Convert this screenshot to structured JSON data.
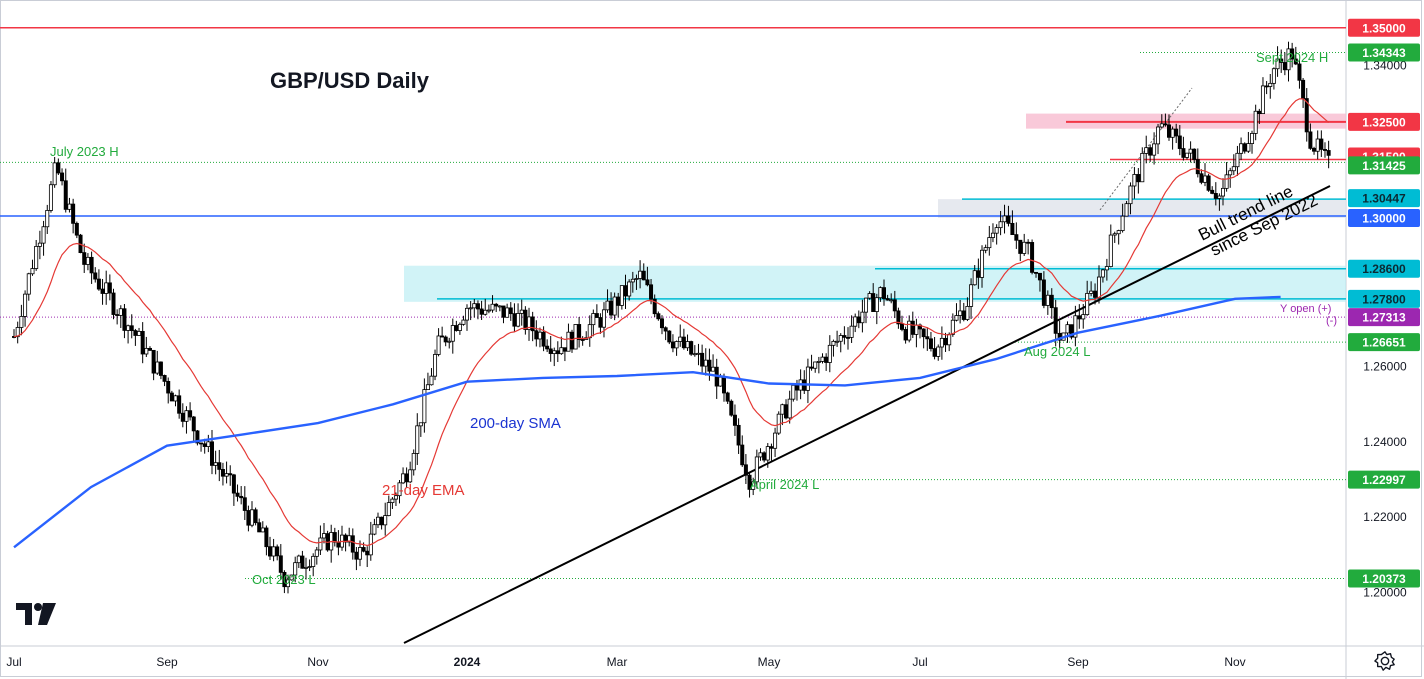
{
  "chart_data": {
    "type": "candlestick",
    "title": "GBP/USD Daily",
    "x_axis": {
      "labels": [
        "Jul",
        "Sep",
        "Nov",
        "2024",
        "Mar",
        "May",
        "Jul",
        "Sep",
        "Nov"
      ]
    },
    "y_axis": {
      "range": [
        1.185,
        1.36
      ],
      "ticks": [
        "1.34000",
        "1.26000",
        "1.24000",
        "1.22000",
        "1.20000"
      ]
    },
    "series": [
      {
        "name": "21-day EMA",
        "color": "#e53935"
      },
      {
        "name": "200-day SMA",
        "color": "#2962ff"
      }
    ],
    "levels": [
      {
        "value": "1.35000",
        "badge_color": "#f23645",
        "line": "solid"
      },
      {
        "value": "1.34343",
        "badge_color": "#22ab3d",
        "line": "dotted",
        "annotation": "Sept 2024 H"
      },
      {
        "value": "1.32500",
        "badge_color": "#f23645",
        "line": "solid"
      },
      {
        "value": "1.31500",
        "badge_color": "#f23645",
        "line": "solid"
      },
      {
        "value": "1.31425",
        "badge_color": "#22ab3d",
        "line": "dotted"
      },
      {
        "value": "1.30447",
        "badge_color": "#00bcd4",
        "line": "solid"
      },
      {
        "value": "1.30000",
        "badge_color": "#2962ff",
        "line": "solid"
      },
      {
        "value": "1.28600",
        "badge_color": "#00bcd4",
        "line": "solid"
      },
      {
        "value": "1.27800",
        "badge_color": "#00bcd4",
        "line": "solid"
      },
      {
        "value": "1.27313",
        "badge_color": "#9c27b0",
        "line": "dotted",
        "annotation": "Y open (+)\n(-)"
      },
      {
        "value": "1.26651",
        "badge_color": "#22ab3d",
        "line": "dotted",
        "annotation": "Aug 2024 L"
      },
      {
        "value": "1.22997",
        "badge_color": "#22ab3d",
        "line": "dotted",
        "annotation": "April 2024 L"
      },
      {
        "value": "1.20373",
        "badge_color": "#22ab3d",
        "line": "dotted",
        "annotation": "Oct 2023 L"
      }
    ],
    "annotations": {
      "july_2023_high": "July 2023 H",
      "sma_label": "200-day SMA",
      "ema_label": "21-day EMA",
      "trendline_label_1": "Bull trend line",
      "trendline_label_2": "since Sep 2022"
    },
    "trendline": {
      "from": [
        "Dec 2023",
        1.186
      ],
      "to": [
        "Sep 2024",
        1.303
      ]
    },
    "zones": [
      {
        "from": "Dec 2023",
        "to": "end",
        "low": 1.278,
        "high": 1.286,
        "color": "#b2ebf2"
      },
      {
        "from": "Jul 2024",
        "to": "end",
        "low": 1.3,
        "high": 1.30447,
        "color": "#e0e3eb"
      },
      {
        "from": "Aug 2024",
        "to": "end",
        "low": 1.324,
        "high": 1.327,
        "color": "#f8bbd0"
      }
    ]
  },
  "branding": {
    "logo": "TV"
  },
  "controls": {
    "settings_icon": "gear-icon"
  }
}
